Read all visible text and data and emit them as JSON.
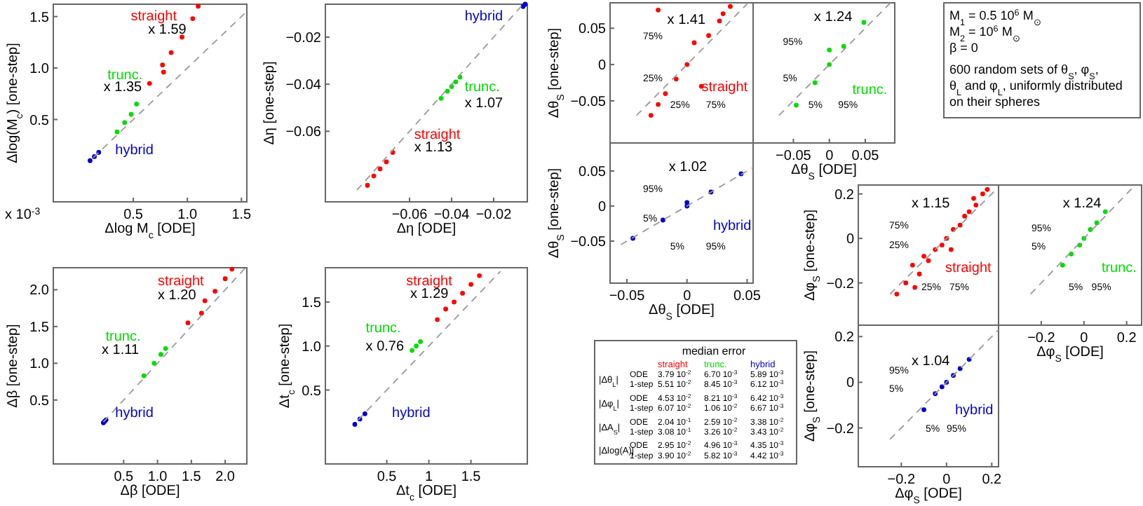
{
  "chart_data": [
    {
      "type": "scatter",
      "xlabel": "Δlog M$_{c}$ [ODE]",
      "ylabel": "Δlog(M$_{c}$) [one-step]",
      "xlim": [
        -0.24,
        1.55
      ],
      "ylim": [
        -0.3,
        1.62
      ],
      "xticks": [
        {
          "value": 0.5,
          "label": "0.5"
        },
        {
          "value": 1,
          "label": "1.0"
        },
        {
          "value": 1.5,
          "label": "1.5"
        }
      ],
      "yticks": [
        {
          "value": 0.5,
          "label": "0.5"
        },
        {
          "value": 1,
          "label": "1.0"
        },
        {
          "value": 1.5,
          "label": "1.5"
        }
      ],
      "legend": false,
      "marker": "circle",
      "series": [
        {
          "name": "straight",
          "color": "#ff0000",
          "x": [
            0.65,
            0.77,
            0.78,
            0.85,
            0.95,
            1.05,
            1.1
          ],
          "values": [
            0.85,
            1.03,
            0.96,
            1.15,
            1.3,
            1.48,
            1.6
          ]
        },
        {
          "name": "trunc.",
          "color": "#00dd00",
          "x": [
            0.35,
            0.42,
            0.48,
            0.53
          ],
          "values": [
            0.38,
            0.47,
            0.55,
            0.65
          ]
        },
        {
          "name": "hybrid",
          "color": "#0000cc",
          "x": [
            0.1,
            0.14,
            0.18
          ],
          "values": [
            0.1,
            0.14,
            0.18
          ]
        },
        {
          "type": "line",
          "line_style": "dashed",
          "marker": "none",
          "color": "#999999",
          "x": [
            0.13,
            1.55
          ],
          "values": [
            0.13,
            1.55
          ]
        }
      ],
      "annotations": [
        "x 1.59",
        "x 1.35",
        "x 10$^{-3}$"
      ]
    },
    {
      "type": "scatter",
      "xlabel": "Δη [ODE]",
      "ylabel": "Δη [one-step]",
      "xlim": [
        -0.1,
        -0.004
      ],
      "ylim": [
        -0.09,
        -0.006
      ],
      "xticks": [
        {
          "value": -0.06,
          "label": "−0.06"
        },
        {
          "value": -0.04,
          "label": "−0.04"
        },
        {
          "value": -0.02,
          "label": "−0.02"
        }
      ],
      "yticks": [
        {
          "value": -0.06,
          "label": "−0.06"
        },
        {
          "value": -0.04,
          "label": "−0.04"
        },
        {
          "value": -0.02,
          "label": "−0.02"
        }
      ],
      "legend": false,
      "marker": "circle",
      "series": [
        {
          "name": "straight",
          "color": "#ff0000",
          "x": [
            -0.08,
            -0.077,
            -0.074,
            -0.071,
            -0.068
          ],
          "values": [
            -0.083,
            -0.079,
            -0.076,
            -0.073,
            -0.069
          ]
        },
        {
          "name": "trunc.",
          "color": "#00dd00",
          "x": [
            -0.045,
            -0.042,
            -0.04,
            -0.038,
            -0.036
          ],
          "values": [
            -0.046,
            -0.043,
            -0.041,
            -0.039,
            -0.037
          ]
        },
        {
          "name": "hybrid",
          "color": "#0000cc",
          "x": [
            -0.006,
            -0.005
          ],
          "values": [
            -0.007,
            -0.006
          ]
        },
        {
          "type": "line",
          "line_style": "dashed",
          "marker": "none",
          "color": "#999999",
          "x": [
            -0.085,
            -0.006
          ],
          "values": [
            -0.085,
            -0.006
          ]
        }
      ],
      "annotations": [
        "x 1.07",
        "x 1.13"
      ]
    },
    {
      "type": "scatter",
      "xlabel": "Δβ [ODE]",
      "ylabel": "Δβ [one-step]",
      "xlim": [
        -0.54,
        2.32
      ],
      "ylim": [
        -0.37,
        2.3
      ],
      "xticks": [
        {
          "value": 0.5,
          "label": "0.5"
        },
        {
          "value": 1,
          "label": "1.0"
        },
        {
          "value": 1.5,
          "label": "1.5"
        },
        {
          "value": 2,
          "label": "2.0"
        }
      ],
      "yticks": [
        {
          "value": 0.5,
          "label": "0.5"
        },
        {
          "value": 1,
          "label": "1.0"
        },
        {
          "value": 1.5,
          "label": "1.5"
        },
        {
          "value": 2,
          "label": "2.0"
        }
      ],
      "legend": false,
      "marker": "circle",
      "series": [
        {
          "name": "straight",
          "color": "#ff0000",
          "x": [
            1.45,
            1.65,
            1.7,
            1.85,
            2.0,
            2.1
          ],
          "values": [
            1.55,
            1.68,
            1.85,
            1.98,
            2.15,
            2.28
          ]
        },
        {
          "name": "trunc.",
          "color": "#00dd00",
          "x": [
            0.8,
            0.95,
            1.05,
            1.12
          ],
          "values": [
            0.83,
            1.0,
            1.12,
            1.2
          ]
        },
        {
          "name": "hybrid",
          "color": "#0000cc",
          "x": [
            0.2,
            0.22,
            0.24
          ],
          "values": [
            0.19,
            0.21,
            0.23
          ]
        },
        {
          "type": "line",
          "line_style": "dashed",
          "marker": "none",
          "color": "#999999",
          "x": [
            0.2,
            2.3
          ],
          "values": [
            0.2,
            2.3
          ]
        }
      ],
      "annotations": [
        "x 1.20",
        "x 1.11"
      ]
    },
    {
      "type": "scatter",
      "xlabel": "Δt$_{c}$ [ODE]",
      "ylabel": "Δt$_{c}$ [one-step]",
      "xlim": [
        -0.23,
        2.17
      ],
      "ylim": [
        -0.34,
        1.89
      ],
      "xticks": [
        {
          "value": 0.5,
          "label": "0.5"
        },
        {
          "value": 1,
          "label": "1"
        },
        {
          "value": 1.5,
          "label": "1.5"
        }
      ],
      "yticks": [
        {
          "value": 0.5,
          "label": "0.5"
        },
        {
          "value": 1,
          "label": "1.0"
        },
        {
          "value": 1.5,
          "label": "1.5"
        }
      ],
      "legend": false,
      "marker": "circle",
      "series": [
        {
          "name": "straight",
          "color": "#ff0000",
          "x": [
            1.1,
            1.2,
            1.3,
            1.4,
            1.5,
            1.6
          ],
          "values": [
            1.3,
            1.42,
            1.5,
            1.6,
            1.7,
            1.8
          ]
        },
        {
          "name": "trunc.",
          "color": "#00dd00",
          "x": [
            0.8,
            0.85,
            0.9
          ],
          "values": [
            0.95,
            1.0,
            1.05
          ]
        },
        {
          "name": "hybrid",
          "color": "#0000cc",
          "x": [
            0.12,
            0.18,
            0.24
          ],
          "values": [
            0.11,
            0.17,
            0.23
          ]
        },
        {
          "type": "line",
          "line_style": "dashed",
          "marker": "none",
          "color": "#999999",
          "x": [
            0.16,
            1.85
          ],
          "values": [
            0.16,
            1.85
          ]
        }
      ],
      "annotations": [
        "x 1.29",
        "x 0.76"
      ]
    },
    {
      "type": "scatter",
      "ylabel": "Δθ$_{S}$ [one-step]",
      "xlim": [
        -0.064,
        0.055
      ],
      "ylim": [
        -0.108,
        0.085
      ],
      "yticks": [
        {
          "value": -0.05,
          "label": "−0.05"
        },
        {
          "value": 0,
          "label": "0"
        },
        {
          "value": 0.05,
          "label": "0.05"
        }
      ],
      "tick_labels": "y",
      "legend": false,
      "marker": "circle",
      "series": [
        {
          "name": "straight",
          "color": "#ff0000",
          "x": [
            -0.03,
            -0.024,
            -0.018,
            -0.009,
            0,
            0.006,
            0.012,
            0.018,
            0.027,
            0.03,
            0.036,
            -0.024
          ],
          "values": [
            -0.07,
            -0.055,
            -0.04,
            -0.02,
            0,
            0.03,
            -0.03,
            0.04,
            0.06,
            0.07,
            0.08,
            0.075
          ]
        },
        {
          "type": "line",
          "line_style": "dashed",
          "marker": "none",
          "color": "#999999",
          "x": [
            -0.042,
            0.051
          ],
          "values": [
            -0.07,
            0.085
          ]
        }
      ],
      "annotations": [
        "x 1.41",
        "75%",
        "25%",
        "25%",
        "75%"
      ]
    },
    {
      "type": "scatter",
      "xlabel": "Δθ$_{S}$ [ODE]",
      "xlim": [
        -0.106,
        0.091
      ],
      "ylim": [
        -0.108,
        0.085
      ],
      "xticks": [
        {
          "value": -0.05,
          "label": "−0.05"
        },
        {
          "value": 0,
          "label": "0"
        },
        {
          "value": 0.05,
          "label": "0.05"
        }
      ],
      "tick_labels": "x",
      "legend": false,
      "marker": "circle",
      "series": [
        {
          "name": "trunc.",
          "color": "#00dd00",
          "x": [
            -0.046,
            -0.02,
            0,
            0.02,
            0.048,
            0
          ],
          "values": [
            -0.056,
            -0.025,
            0,
            0.025,
            0.058,
            0.02
          ]
        },
        {
          "type": "line",
          "line_style": "dashed",
          "marker": "none",
          "color": "#999999",
          "x": [
            -0.07,
            0.085
          ],
          "values": [
            -0.07,
            0.085
          ]
        }
      ],
      "annotations": [
        "x 1.24",
        "95%",
        "5%",
        "5%",
        "95%"
      ]
    },
    {
      "type": "scatter",
      "xlabel": "Δθ$_{S}$ [ODE]",
      "ylabel": "Δθ$_{S}$ [one-step]",
      "xlim": [
        -0.064,
        0.055
      ],
      "ylim": [
        -0.11,
        0.09
      ],
      "xticks": [
        {
          "value": -0.05,
          "label": "−0.05"
        },
        {
          "value": 0,
          "label": "0"
        },
        {
          "value": 0.05,
          "label": "0.05"
        }
      ],
      "yticks": [
        {
          "value": -0.05,
          "label": "−0.05"
        },
        {
          "value": 0,
          "label": "0"
        },
        {
          "value": 0.05,
          "label": "0.05"
        }
      ],
      "legend": false,
      "marker": "circle",
      "series": [
        {
          "name": "hybrid",
          "color": "#0000cc",
          "x": [
            -0.045,
            -0.02,
            0,
            0.02,
            0.045,
            0
          ],
          "values": [
            -0.046,
            -0.02,
            0,
            0.02,
            0.046,
            0.005
          ]
        },
        {
          "type": "line",
          "line_style": "dashed",
          "marker": "none",
          "color": "#999999",
          "x": [
            -0.055,
            0.055
          ],
          "values": [
            -0.055,
            0.055
          ]
        }
      ],
      "annotations": [
        "x 1.02",
        "95%",
        "5%",
        "5%",
        "95%"
      ]
    },
    {
      "type": "scatter",
      "ylabel": "Δφ$_{S}$ [one-step]",
      "xlim": [
        -0.39,
        0.23
      ],
      "ylim": [
        -0.39,
        0.24
      ],
      "yticks": [
        {
          "value": -0.2,
          "label": "−0.2"
        },
        {
          "value": 0,
          "label": "0"
        },
        {
          "value": 0.2,
          "label": "0.2"
        }
      ],
      "tick_labels": "y",
      "legend": false,
      "marker": "circle",
      "series": [
        {
          "name": "straight",
          "color": "#ff0000",
          "x": [
            -0.22,
            -0.18,
            -0.15,
            -0.12,
            -0.1,
            -0.08,
            -0.05,
            -0.02,
            0,
            0.03,
            0.06,
            0.08,
            0.1,
            0.13,
            0.16,
            0.18,
            -0.14,
            0.02,
            0.12
          ],
          "values": [
            -0.25,
            -0.2,
            -0.12,
            -0.16,
            -0.08,
            -0.1,
            -0.05,
            -0.03,
            0,
            0.04,
            0.06,
            0.1,
            0.12,
            0.15,
            0.2,
            0.22,
            -0.22,
            -0.05,
            0.18
          ]
        },
        {
          "type": "line",
          "line_style": "dashed",
          "marker": "none",
          "color": "#999999",
          "x": [
            -0.25,
            0.23
          ],
          "values": [
            -0.25,
            0.23
          ]
        }
      ],
      "annotations": [
        "x 1.15",
        "75%",
        "25%",
        "25%",
        "75%"
      ]
    },
    {
      "type": "scatter",
      "xlabel": "Δφ$_{S}$ [ODE]",
      "xlim": [
        -0.4,
        0.27
      ],
      "ylim": [
        -0.39,
        0.24
      ],
      "xticks": [
        {
          "value": -0.2,
          "label": "−0.2"
        },
        {
          "value": 0,
          "label": "0"
        },
        {
          "value": 0.2,
          "label": "0.2"
        }
      ],
      "tick_labels": "x",
      "legend": false,
      "marker": "circle",
      "series": [
        {
          "name": "trunc.",
          "color": "#00dd00",
          "x": [
            -0.1,
            -0.06,
            -0.02,
            0,
            0.03,
            0.06,
            0.1
          ],
          "values": [
            -0.12,
            -0.07,
            -0.03,
            0,
            0.04,
            0.07,
            0.12
          ]
        },
        {
          "type": "line",
          "line_style": "dashed",
          "marker": "none",
          "color": "#999999",
          "x": [
            -0.25,
            0.24
          ],
          "values": [
            -0.25,
            0.24
          ]
        }
      ],
      "annotations": [
        "x 1.24",
        "95%",
        "5%",
        "5%",
        "95%"
      ]
    },
    {
      "type": "scatter",
      "xlabel": "Δφ$_{S}$ [ODE]",
      "ylabel": "Δφ$_{S}$ [one-step]",
      "xlim": [
        -0.39,
        0.23
      ],
      "ylim": [
        -0.37,
        0.25
      ],
      "xticks": [
        {
          "value": -0.2,
          "label": "−0.2"
        },
        {
          "value": 0,
          "label": "0"
        },
        {
          "value": 0.2,
          "label": "0.2"
        }
      ],
      "yticks": [
        {
          "value": -0.2,
          "label": "−0.2"
        },
        {
          "value": 0,
          "label": "0"
        },
        {
          "value": 0.2,
          "label": "0.2"
        }
      ],
      "legend": false,
      "marker": "circle",
      "series": [
        {
          "name": "hybrid",
          "color": "#0000cc",
          "x": [
            -0.1,
            -0.05,
            -0.02,
            0,
            0.03,
            0.06,
            0.1
          ],
          "values": [
            -0.12,
            -0.05,
            -0.02,
            0,
            0.03,
            0.06,
            0.1
          ]
        },
        {
          "type": "line",
          "line_style": "dashed",
          "marker": "none",
          "color": "#999999",
          "x": [
            -0.25,
            0.23
          ],
          "values": [
            -0.25,
            0.23
          ]
        }
      ],
      "annotations": [
        "x 1.04",
        "95%",
        "5%",
        "5%",
        "95%"
      ]
    },
    {
      "type": "other",
      "annotations": [
        "M$_{1}$ = 0.5 10$^{6}$ M$_{⊙}$",
        "M$_{2}$ = 10$^{6}$ M$_{⊙}$",
        "β = 0",
        "600 random sets of θ$_{S}$, φ$_{S}$,",
        "θ$_{L}$ and φ$_{L}$, uniformly distributed",
        "on their spheres"
      ]
    },
    {
      "type": "other",
      "title": "median error",
      "categories": [
        "straight",
        "trunc.",
        "hybrid"
      ],
      "colors": [
        "#ff0000",
        "#00dd00",
        "#0000cc"
      ],
      "y_categories": [
        "ODE",
        "1-step",
        "ODE",
        "1-step",
        "ODE",
        "1-step",
        "ODE",
        "1-step"
      ],
      "annotations": [
        "|Δθ$_{L}$|",
        "|Δφ$_{L}$|",
        "|ΔA$_{S}$|",
        "|Δlog(A)|"
      ],
      "cell_labels": [
        [
          "3.79 10$^{-2}$",
          "6.70 10$^{-3}$",
          "5.89 10$^{-3}$"
        ],
        [
          "5.51 10$^{-2}$",
          "8.45 10$^{-3}$",
          "6.12 10$^{-3}$"
        ],
        [
          "4.53 10$^{-2}$",
          "8.21 10$^{-3}$",
          "6.42 10$^{-3}$"
        ],
        [
          "6.07 10$^{-2}$",
          "1.06 10$^{-2}$",
          "6.67 10$^{-3}$"
        ],
        [
          "2.04 10$^{-1}$",
          "2.59 10$^{-2}$",
          "3.38 10$^{-2}$"
        ],
        [
          "3.08 10$^{-1}$",
          "3.26 10$^{-2}$",
          "3.43 10$^{-2}$"
        ],
        [
          "2.95 10$^{-2}$",
          "4.96 10$^{-3}$",
          "4.35 10$^{-3}$"
        ],
        [
          "3.90 10$^{-2}$",
          "5.82 10$^{-3}$",
          "4.42 10$^{-3}$"
        ]
      ]
    }
  ]
}
